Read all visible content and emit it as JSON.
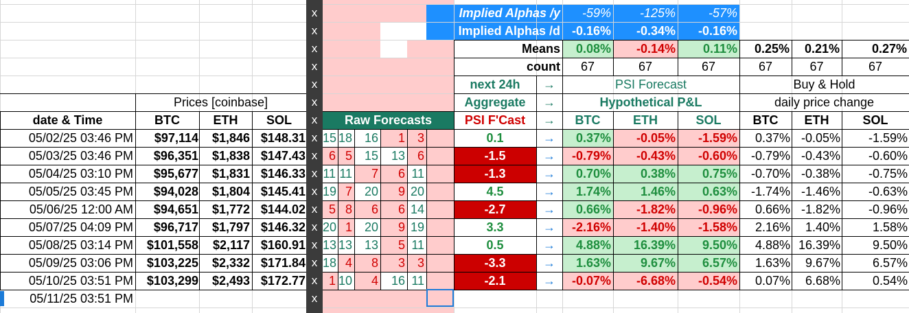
{
  "colors": {
    "header_blue": "#1e90ff",
    "light_pink": "#ffcccc",
    "teal_header": "#1a7a62",
    "dark_red": "#cc0000",
    "light_green": "#c6efce",
    "text_green": "#1e8e3e",
    "text_red": "#d00000",
    "dark_column": "#3b3b3b",
    "selection_blue": "#1c7bd8"
  },
  "implied_alphas": {
    "per_year_label": "Implied Alphas /y",
    "per_day_label": "Implied Alphas /d",
    "per_year": [
      "-59%",
      "-125%",
      "-57%"
    ],
    "per_day": [
      "-0.16%",
      "-0.34%",
      "-0.16%"
    ]
  },
  "means": {
    "label": "Means",
    "psi": [
      "0.08%",
      "-0.14%",
      "0.11%"
    ],
    "bh": [
      "0.25%",
      "0.21%",
      "0.27%"
    ]
  },
  "count": {
    "label": "count",
    "values": [
      "67",
      "67",
      "67",
      "67",
      "67",
      "67"
    ]
  },
  "headers": {
    "next24h": "next 24h",
    "aggregate": "Aggregate",
    "psi_fcast": "PSI F'Cast",
    "arrow": "→",
    "psi_forecast": "PSI Forecast",
    "hypothetical_pl": "Hypothetical P&L",
    "buy_hold": "Buy & Hold",
    "daily_price_change": "daily price change",
    "prices_coinbase": "Prices [coinbase]",
    "date_time": "date & Time",
    "raw_forecasts": "Raw Forecasts",
    "btc": "BTC",
    "eth": "ETH",
    "sol": "SOL"
  },
  "x_marker": "x",
  "rows": [
    {
      "date": "05/02/25 03:46 PM",
      "btc": "$97,114",
      "eth": "$1,846",
      "sol": "$148.31",
      "raw": [
        "15",
        "18",
        "16",
        "1",
        "3"
      ],
      "fcast": "0.1",
      "pl": [
        "0.37%",
        "-0.05%",
        "-1.59%"
      ],
      "bh": [
        "0.37%",
        "-0.05%",
        "-1.59%"
      ]
    },
    {
      "date": "05/03/25 03:46 PM",
      "btc": "$96,351",
      "eth": "$1,838",
      "sol": "$147.43",
      "raw": [
        "6",
        "5",
        "15",
        "13",
        "6"
      ],
      "fcast": "-1.5",
      "pl": [
        "-0.79%",
        "-0.43%",
        "-0.60%"
      ],
      "bh": [
        "-0.79%",
        "-0.43%",
        "-0.60%"
      ]
    },
    {
      "date": "05/04/25 03:10 PM",
      "btc": "$95,677",
      "eth": "$1,831",
      "sol": "$146.33",
      "raw": [
        "11",
        "11",
        "7",
        "6",
        "11"
      ],
      "fcast": "-1.3",
      "pl": [
        "0.70%",
        "0.38%",
        "0.75%"
      ],
      "bh": [
        "-0.70%",
        "-0.38%",
        "-0.75%"
      ]
    },
    {
      "date": "05/05/25 03:45 PM",
      "btc": "$94,028",
      "eth": "$1,804",
      "sol": "$145.41",
      "raw": [
        "19",
        "7",
        "20",
        "9",
        "20"
      ],
      "fcast": "4.5",
      "pl": [
        "1.74%",
        "1.46%",
        "0.63%"
      ],
      "bh": [
        "-1.74%",
        "-1.46%",
        "-0.63%"
      ]
    },
    {
      "date": "05/06/25 12:00 AM",
      "btc": "$94,651",
      "eth": "$1,772",
      "sol": "$144.02",
      "raw": [
        "5",
        "8",
        "6",
        "6",
        "14"
      ],
      "fcast": "-2.7",
      "pl": [
        "0.66%",
        "-1.82%",
        "-0.96%"
      ],
      "bh": [
        "0.66%",
        "-1.82%",
        "-0.96%"
      ]
    },
    {
      "date": "05/07/25 04:09 PM",
      "btc": "$96,717",
      "eth": "$1,797",
      "sol": "$146.32",
      "raw": [
        "20",
        "1",
        "20",
        "9",
        "19"
      ],
      "fcast": "3.3",
      "pl": [
        "-2.16%",
        "-1.40%",
        "-1.58%"
      ],
      "bh": [
        "2.16%",
        "1.40%",
        "1.58%"
      ]
    },
    {
      "date": "05/08/25 03:14 PM",
      "btc": "$101,558",
      "eth": "$2,117",
      "sol": "$160.91",
      "raw": [
        "13",
        "13",
        "13",
        "5",
        "11"
      ],
      "fcast": "0.5",
      "pl": [
        "4.88%",
        "16.39%",
        "9.50%"
      ],
      "bh": [
        "4.88%",
        "16.39%",
        "9.50%"
      ]
    },
    {
      "date": "05/09/25 03:06 PM",
      "btc": "$103,225",
      "eth": "$2,332",
      "sol": "$171.84",
      "raw": [
        "18",
        "4",
        "8",
        "3",
        "3"
      ],
      "fcast": "-3.3",
      "pl": [
        "1.63%",
        "9.67%",
        "6.57%"
      ],
      "bh": [
        "1.63%",
        "9.67%",
        "6.57%"
      ]
    },
    {
      "date": "05/10/25 03:51 PM",
      "btc": "$103,299",
      "eth": "$2,493",
      "sol": "$172.77",
      "raw": [
        "1",
        "10",
        "4",
        "16",
        "11"
      ],
      "fcast": "-2.1",
      "pl": [
        "-0.07%",
        "-6.68%",
        "-0.54%"
      ],
      "bh": [
        "0.07%",
        "6.68%",
        "0.54%"
      ]
    }
  ],
  "extra_dates": [
    "05/11/25 03:51 PM"
  ]
}
